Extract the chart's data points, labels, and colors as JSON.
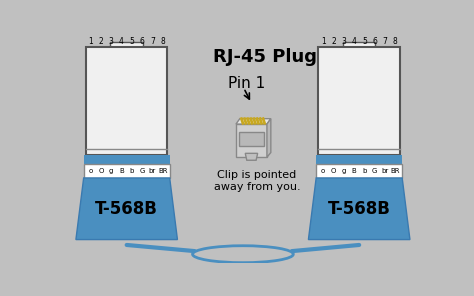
{
  "bg_color": "#c0c0c0",
  "title": "RJ-45 Plug",
  "pin1_label": "Pin 1",
  "clip_text": "Clip is pointed\naway from you.",
  "standard_label": "T-568B",
  "wire_labels": [
    "o",
    "O",
    "g",
    "B",
    "b",
    "G",
    "br",
    "BR"
  ],
  "pin_numbers": [
    "1",
    "2",
    "3",
    "4",
    "5",
    "6",
    "7",
    "8"
  ],
  "wire_colors": [
    [
      "white",
      "#D48A00"
    ],
    [
      "#D48A00",
      "#D48A00"
    ],
    [
      "white",
      "#2a7a2a"
    ],
    [
      "#1a4fbf",
      "#1a4fbf"
    ],
    [
      "white",
      "#1a4fbf"
    ],
    [
      "#2a7a2a",
      "#2a7a2a"
    ],
    [
      "white",
      "#8B4513"
    ],
    [
      "#8B4513",
      "#8B4513"
    ]
  ],
  "connector_blue": "#4a8fc0",
  "connector_blue2": "#3a7ab0",
  "body_white": "#f0f0f0",
  "body_border": "#555555"
}
